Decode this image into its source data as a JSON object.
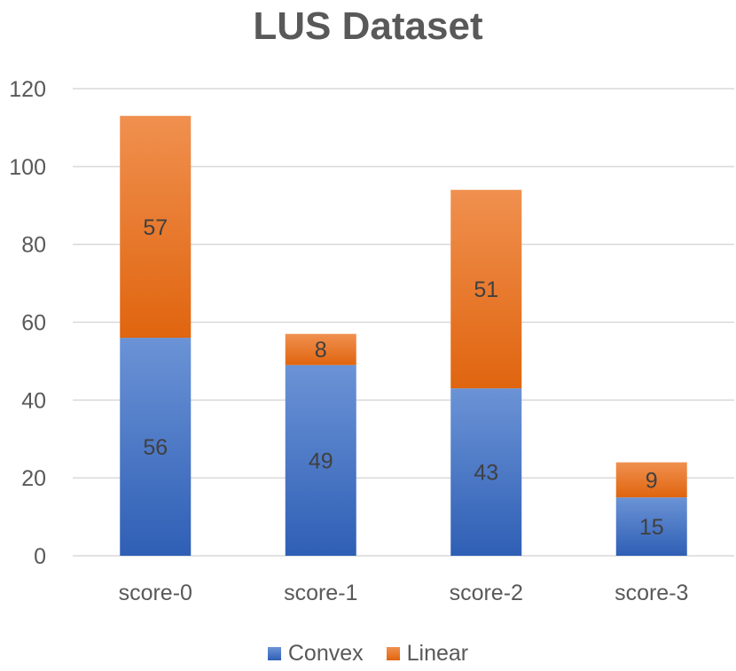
{
  "chart_data": {
    "type": "bar",
    "stacked": true,
    "title": "LUS Dataset",
    "categories": [
      "score-0",
      "score-1",
      "score-2",
      "score-3"
    ],
    "series": [
      {
        "name": "Convex",
        "values": [
          56,
          49,
          43,
          15
        ],
        "color": "#4472C4"
      },
      {
        "name": "Linear",
        "values": [
          57,
          8,
          51,
          9
        ],
        "color": "#ED7D31"
      }
    ],
    "ylim": [
      0,
      120
    ],
    "yticks": [
      0,
      20,
      40,
      60,
      80,
      100,
      120
    ],
    "grid": true,
    "legend": "bottom",
    "data_labels": true
  }
}
